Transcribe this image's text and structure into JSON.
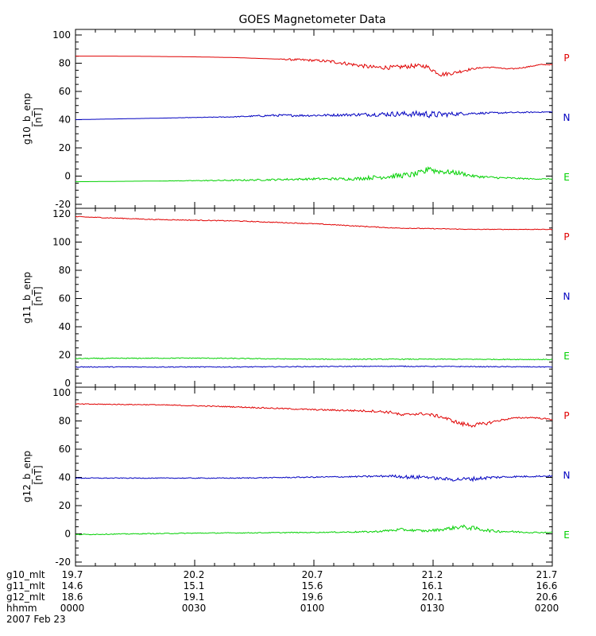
{
  "chart_data": {
    "type": "line",
    "title": "GOES Magnetometer Data",
    "colors": {
      "P": "#e00000",
      "N": "#0000c0",
      "E": "#00d000",
      "axis": "#000000"
    },
    "x": {
      "range": [
        0,
        120
      ],
      "ticks": [
        0,
        30,
        60,
        90,
        120
      ]
    },
    "panels": [
      {
        "ylabel": "g10_b_enp",
        "unit": "[nT]",
        "ylim": [
          -20,
          100
        ],
        "yticks": [
          -20,
          0,
          20,
          40,
          60,
          80,
          100
        ],
        "series": [
          {
            "name": "P",
            "color_key": "P",
            "values": [
              [
                0,
                85
              ],
              [
                10,
                85
              ],
              [
                20,
                84.8
              ],
              [
                30,
                84.5
              ],
              [
                40,
                84
              ],
              [
                50,
                83
              ],
              [
                55,
                82.5
              ],
              [
                60,
                82
              ],
              [
                65,
                81
              ],
              [
                70,
                79
              ],
              [
                75,
                77
              ],
              [
                80,
                77
              ],
              [
                85,
                78
              ],
              [
                88,
                78
              ],
              [
                90,
                75
              ],
              [
                92,
                72
              ],
              [
                95,
                73
              ],
              [
                98,
                75
              ],
              [
                100,
                76
              ],
              [
                103,
                77
              ],
              [
                106,
                77
              ],
              [
                108,
                76
              ],
              [
                110,
                76
              ],
              [
                113,
                77
              ],
              [
                117,
                79
              ],
              [
                120,
                79
              ]
            ],
            "noise": [
              0,
              0,
              0,
              0,
              0,
              0,
              0.8,
              0.8,
              1.2,
              1.2,
              1.5,
              1.5,
              1.5,
              1.5,
              1.5,
              1.5,
              1.2,
              1.2,
              0.6,
              0.4,
              0.4,
              0.4,
              0.4,
              0.4,
              0.3,
              0.3
            ]
          },
          {
            "name": "N",
            "color_key": "N",
            "values": [
              [
                0,
                40
              ],
              [
                20,
                41
              ],
              [
                40,
                42
              ],
              [
                50,
                43
              ],
              [
                60,
                43
              ],
              [
                70,
                43.5
              ],
              [
                80,
                44
              ],
              [
                85,
                44
              ],
              [
                88,
                44
              ],
              [
                90,
                43.5
              ],
              [
                95,
                44
              ],
              [
                100,
                44.5
              ],
              [
                110,
                45
              ],
              [
                120,
                45.5
              ]
            ],
            "noise": [
              0,
              0,
              0.3,
              0.8,
              0.8,
              1,
              1.8,
              2,
              2.5,
              2.5,
              1.5,
              0.8,
              0.5,
              0.3
            ]
          },
          {
            "name": "E",
            "color_key": "E",
            "values": [
              [
                0,
                -4
              ],
              [
                20,
                -3.5
              ],
              [
                40,
                -3
              ],
              [
                60,
                -2
              ],
              [
                70,
                -2
              ],
              [
                75,
                -1
              ],
              [
                80,
                0
              ],
              [
                85,
                1
              ],
              [
                88,
                3
              ],
              [
                89,
                7
              ],
              [
                90,
                4
              ],
              [
                93,
                3
              ],
              [
                97,
                2
              ],
              [
                100,
                0
              ],
              [
                105,
                -1
              ],
              [
                110,
                -1.5
              ],
              [
                115,
                -2
              ],
              [
                120,
                -2
              ]
            ],
            "noise": [
              0,
              0,
              0.5,
              0.8,
              1,
              1.5,
              1.8,
              2,
              2.2,
              3,
              2.2,
              1.8,
              1.5,
              1,
              0.8,
              0.6,
              0.4,
              0.3
            ]
          }
        ]
      },
      {
        "ylabel": "g11_b_enp",
        "unit": "[nT]",
        "ylim": [
          0,
          120
        ],
        "yticks": [
          0,
          20,
          40,
          60,
          80,
          100,
          120
        ],
        "series": [
          {
            "name": "P",
            "color_key": "P",
            "values": [
              [
                0,
                118
              ],
              [
                20,
                116
              ],
              [
                40,
                115
              ],
              [
                60,
                113
              ],
              [
                80,
                110
              ],
              [
                100,
                109
              ],
              [
                120,
                109
              ]
            ],
            "noise": [
              0.3,
              0.3,
              0.3,
              0.3,
              0.3,
              0.2,
              0.2
            ]
          },
          {
            "name": "N",
            "color_key": "N",
            "values": [
              [
                0,
                11.5
              ],
              [
                40,
                11.5
              ],
              [
                80,
                12
              ],
              [
                120,
                11.5
              ]
            ],
            "noise": [
              0.3,
              0.3,
              0.3,
              0.3
            ]
          },
          {
            "name": "E",
            "color_key": "E",
            "values": [
              [
                0,
                17.5
              ],
              [
                30,
                17.8
              ],
              [
                60,
                17
              ],
              [
                90,
                17
              ],
              [
                120,
                16.8
              ]
            ],
            "noise": [
              0.3,
              0.3,
              0.3,
              0.3,
              0.3
            ]
          }
        ]
      },
      {
        "ylabel": "g12_b_enp",
        "unit": "[nT]",
        "ylim": [
          -20,
          100
        ],
        "yticks": [
          -20,
          0,
          20,
          40,
          60,
          80,
          100
        ],
        "series": [
          {
            "name": "P",
            "color_key": "P",
            "values": [
              [
                0,
                92
              ],
              [
                20,
                91.5
              ],
              [
                40,
                90
              ],
              [
                60,
                88
              ],
              [
                75,
                87
              ],
              [
                80,
                86
              ],
              [
                82,
                84
              ],
              [
                85,
                85
              ],
              [
                88,
                85
              ],
              [
                92,
                83
              ],
              [
                95,
                80
              ],
              [
                97,
                78
              ],
              [
                100,
                77
              ],
              [
                103,
                78
              ],
              [
                106,
                80
              ],
              [
                110,
                82
              ],
              [
                115,
                82.5
              ],
              [
                120,
                81
              ]
            ],
            "noise": [
              0.3,
              0.3,
              0.4,
              0.5,
              0.8,
              1,
              1,
              1,
              1,
              1.2,
              1.2,
              1.5,
              1.5,
              1.2,
              0.8,
              0.5,
              0.5,
              0.5
            ]
          },
          {
            "name": "N",
            "color_key": "N",
            "values": [
              [
                0,
                39.5
              ],
              [
                40,
                39.5
              ],
              [
                70,
                40.5
              ],
              [
                80,
                41
              ],
              [
                85,
                40
              ],
              [
                88,
                40.5
              ],
              [
                90,
                39.5
              ],
              [
                95,
                38.5
              ],
              [
                100,
                39
              ],
              [
                105,
                40
              ],
              [
                110,
                40.5
              ],
              [
                120,
                41
              ]
            ],
            "noise": [
              0.3,
              0.3,
              0.5,
              0.8,
              1.5,
              1,
              1,
              1.2,
              1.5,
              1,
              0.6,
              0.5
            ]
          },
          {
            "name": "E",
            "color_key": "E",
            "values": [
              [
                0,
                -0.5
              ],
              [
                30,
                0.5
              ],
              [
                60,
                1
              ],
              [
                75,
                1.5
              ],
              [
                82,
                3
              ],
              [
                88,
                2
              ],
              [
                92,
                3
              ],
              [
                97,
                5
              ],
              [
                100,
                4
              ],
              [
                105,
                2
              ],
              [
                115,
                1
              ],
              [
                120,
                1
              ]
            ],
            "noise": [
              0.3,
              0.3,
              0.3,
              0.6,
              1,
              0.8,
              1,
              1.5,
              1.5,
              1,
              0.5,
              0.4
            ]
          }
        ]
      }
    ],
    "legend": [
      {
        "label": "P",
        "color_key": "P"
      },
      {
        "label": "N",
        "color_key": "N"
      },
      {
        "label": "E",
        "color_key": "E"
      }
    ],
    "axis_table": {
      "rows": [
        {
          "label": "g10_mlt",
          "values": [
            "19.7",
            "20.2",
            "20.7",
            "21.2",
            "21.7"
          ]
        },
        {
          "label": "g11_mlt",
          "values": [
            "14.6",
            "15.1",
            "15.6",
            "16.1",
            "16.6"
          ]
        },
        {
          "label": "g12_mlt",
          "values": [
            "18.6",
            "19.1",
            "19.6",
            "20.1",
            "20.6"
          ]
        },
        {
          "label": "hhmm",
          "values": [
            "0000",
            "0030",
            "0100",
            "0130",
            "0200"
          ]
        }
      ],
      "date": "2007 Feb 23"
    }
  }
}
